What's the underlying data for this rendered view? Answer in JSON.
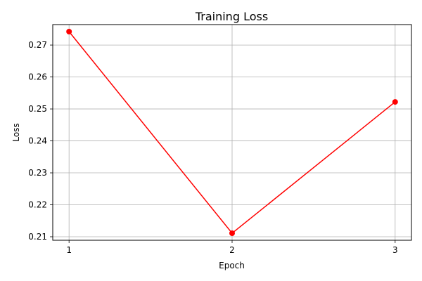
{
  "chart_data": {
    "type": "line",
    "title": "Training Loss",
    "xlabel": "Epoch",
    "ylabel": "Loss",
    "x": [
      1,
      2,
      3
    ],
    "xticks": [
      "1",
      "2",
      "3"
    ],
    "yticks": [
      "0.21",
      "0.22",
      "0.23",
      "0.24",
      "0.25",
      "0.26",
      "0.27"
    ],
    "ylim": [
      0.2089,
      0.2764
    ],
    "xlim": [
      0.9,
      3.1
    ],
    "grid": true,
    "series": [
      {
        "values": [
          0.2742,
          0.2111,
          0.2522
        ],
        "color": "#ff0000",
        "marker": "circle"
      }
    ]
  }
}
